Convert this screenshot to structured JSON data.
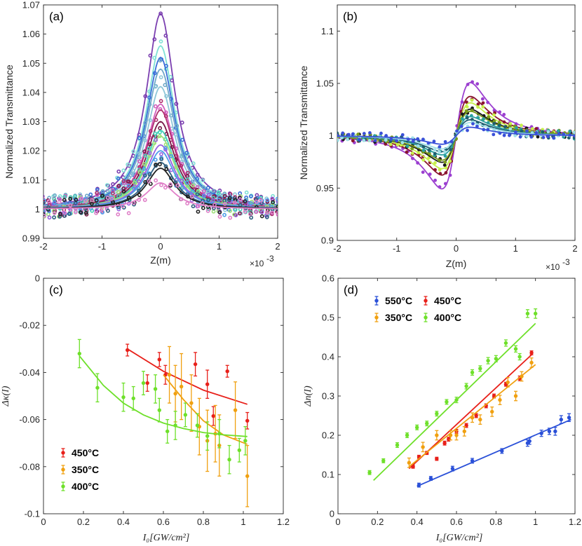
{
  "chart_data": [
    {
      "id": "a",
      "type": "scatter",
      "panel_label": "(a)",
      "xlabel": "Z(m)",
      "ylabel": "Normalized Transmittance",
      "x_exponent": "×10",
      "x_exponent_power": "-3",
      "xlim": [
        -2,
        2
      ],
      "ylim": [
        0.99,
        1.07
      ],
      "xticks": [
        -2,
        -1,
        0,
        1,
        2
      ],
      "yticks": [
        0.99,
        1,
        1.01,
        1.02,
        1.03,
        1.04,
        1.05,
        1.06,
        1.07
      ],
      "ytick_labels": [
        "0.99",
        "1",
        "1.01",
        "1.02",
        "1.03",
        "1.04",
        "1.05",
        "1.06",
        "1.07"
      ],
      "model": "lorentzian peak: T(z) = 1 + peak / (1 + (z/z0)^2), z in units of 10^-3 m",
      "z0": 0.3,
      "series": [
        {
          "peak": 0.067,
          "color": "#7b3fb0"
        },
        {
          "peak": 0.056,
          "color": "#7fe0d6"
        },
        {
          "peak": 0.052,
          "color": "#3a6fd8"
        },
        {
          "peak": 0.048,
          "color": "#6fa8c8"
        },
        {
          "peak": 0.042,
          "color": "#8fc7d9"
        },
        {
          "peak": 0.036,
          "color": "#d25fbd"
        },
        {
          "peak": 0.034,
          "color": "#b0306e"
        },
        {
          "peak": 0.03,
          "color": "#7a1a4a"
        },
        {
          "peak": 0.027,
          "color": "#44d0b8"
        },
        {
          "peak": 0.025,
          "color": "#9fe07a"
        },
        {
          "peak": 0.022,
          "color": "#9a5fe0"
        },
        {
          "peak": 0.02,
          "color": "#4f9ee8"
        },
        {
          "peak": 0.016,
          "color": "#2f5f7f"
        },
        {
          "peak": 0.014,
          "color": "#222222"
        },
        {
          "peak": 0.009,
          "color": "#e080c8"
        }
      ]
    },
    {
      "id": "b",
      "type": "scatter",
      "panel_label": "(b)",
      "xlabel": "Z(m)",
      "ylabel": "Normalized Transmittance",
      "x_exponent": "×10",
      "x_exponent_power": "-3",
      "xlim": [
        -2,
        2
      ],
      "ylim": [
        0.9,
        1.125
      ],
      "xticks": [
        -2,
        -1,
        0,
        1,
        2
      ],
      "yticks": [
        0.9,
        0.95,
        1,
        1.05,
        1.1
      ],
      "ytick_labels": [
        "0.9",
        "0.95",
        "1",
        "1.05",
        "1.1"
      ],
      "model": "dispersive valley-peak: T(z) = 1 + A * 4x / ((x^2+1)(x^2+9)), x = z/z0, z in units of 10^-3 m",
      "z0": 0.28,
      "series": [
        {
          "amplitude": 0.25,
          "color": "#9b3fd0"
        },
        {
          "amplitude": 0.185,
          "color": "#8a1530"
        },
        {
          "amplitude": 0.155,
          "color": "#c8f04a"
        },
        {
          "amplitude": 0.125,
          "color": "#1a1a1a"
        },
        {
          "amplitude": 0.115,
          "color": "#7a9a1a"
        },
        {
          "amplitude": 0.09,
          "color": "#2aa0a0"
        },
        {
          "amplitude": 0.075,
          "color": "#1f5f6f"
        },
        {
          "amplitude": 0.062,
          "color": "#a0e0e8"
        },
        {
          "amplitude": 0.04,
          "color": "#3a4fd8"
        }
      ]
    },
    {
      "id": "c",
      "type": "scatter",
      "panel_label": "(c)",
      "xlabel": "I₀[GW/cm²]",
      "ylabel": "Δκ(I)",
      "xlim": [
        0,
        1.2
      ],
      "ylim": [
        -0.1,
        0
      ],
      "xticks": [
        0,
        0.2,
        0.4,
        0.6,
        0.8,
        1,
        1.2
      ],
      "xtick_labels": [
        "0",
        "0.2",
        "0.4",
        "0.6",
        "0.8",
        "1",
        "1.2"
      ],
      "yticks": [
        -0.1,
        -0.08,
        -0.06,
        -0.04,
        -0.02,
        0
      ],
      "ytick_labels": [
        "-0.1",
        "-0.08",
        "-0.06",
        "-0.04",
        "-0.02",
        "0"
      ],
      "legend_position": "lower-left",
      "series": [
        {
          "name": "450°C",
          "color": "#e8201a",
          "x": [
            0.42,
            0.52,
            0.58,
            0.61,
            0.76,
            0.82,
            0.85,
            0.92,
            1.02
          ],
          "y": [
            -0.0305,
            -0.0445,
            -0.0345,
            -0.041,
            -0.0365,
            -0.045,
            -0.0585,
            -0.0395,
            -0.0605
          ],
          "err": [
            0.0025,
            0.0035,
            0.003,
            0.004,
            0.005,
            0.006,
            0.004,
            0.0025,
            0.0035
          ],
          "fit": {
            "x": [
              0.42,
              0.6,
              0.8,
              1.02
            ],
            "y": [
              -0.03,
              -0.0395,
              -0.0475,
              -0.0535
            ]
          }
        },
        {
          "name": "350°C",
          "color": "#f0a010",
          "x": [
            0.63,
            0.66,
            0.69,
            0.74,
            0.78,
            0.82,
            0.86,
            0.88,
            0.96,
            1.02
          ],
          "y": [
            -0.041,
            -0.049,
            -0.046,
            -0.053,
            -0.063,
            -0.069,
            -0.066,
            -0.071,
            -0.056,
            -0.084
          ],
          "err": [
            0.012,
            0.012,
            0.014,
            0.012,
            0.012,
            0.013,
            0.012,
            0.013,
            0.012,
            0.013
          ],
          "fit": {
            "x": [
              0.6,
              0.7,
              0.8,
              0.9,
              1.02
            ],
            "y": [
              -0.041,
              -0.0515,
              -0.0605,
              -0.0665,
              -0.0705
            ]
          }
        },
        {
          "name": "400°C",
          "color": "#6ee02a",
          "x": [
            0.18,
            0.27,
            0.4,
            0.45,
            0.5,
            0.56,
            0.58,
            0.62,
            0.66,
            0.71,
            0.77,
            0.82,
            0.88,
            0.93,
            0.98,
            1.01
          ],
          "y": [
            -0.032,
            -0.0465,
            -0.0505,
            -0.051,
            -0.0445,
            -0.047,
            -0.056,
            -0.065,
            -0.0625,
            -0.058,
            -0.0625,
            -0.067,
            -0.066,
            -0.077,
            -0.073,
            -0.069
          ],
          "err": [
            0.006,
            0.006,
            0.006,
            0.005,
            0.005,
            0.006,
            0.005,
            0.005,
            0.006,
            0.005,
            0.005,
            0.006,
            0.006,
            0.006,
            0.005,
            0.006
          ],
          "fit": {
            "x": [
              0.18,
              0.3,
              0.4,
              0.5,
              0.6,
              0.7,
              0.8,
              0.9,
              1.02
            ],
            "y": [
              -0.033,
              -0.0455,
              -0.053,
              -0.058,
              -0.0615,
              -0.0638,
              -0.0655,
              -0.0665,
              -0.0672
            ]
          }
        }
      ]
    },
    {
      "id": "d",
      "type": "scatter",
      "panel_label": "(d)",
      "xlabel": "I₀[GW/cm²]",
      "ylabel": "Δn(I)",
      "xlim": [
        0,
        1.2
      ],
      "ylim": [
        0,
        0.6
      ],
      "xticks": [
        0,
        0.2,
        0.4,
        0.6,
        0.8,
        1,
        1.2
      ],
      "xtick_labels": [
        "0",
        "0.2",
        "0.4",
        "0.6",
        "0.8",
        "1",
        "1.2"
      ],
      "yticks": [
        0,
        0.1,
        0.2,
        0.3,
        0.4,
        0.5,
        0.6
      ],
      "ytick_labels": [
        "0",
        "0.1",
        "0.2",
        "0.3",
        "0.4",
        "0.5",
        "0.6"
      ],
      "legend_position": "top-left",
      "series": [
        {
          "name": "550°C",
          "color": "#2a50d8",
          "x": [
            0.41,
            0.47,
            0.58,
            0.68,
            0.83,
            0.96,
            0.97,
            1.03,
            1.07,
            1.1,
            1.13,
            1.17
          ],
          "y": [
            0.073,
            0.09,
            0.115,
            0.135,
            0.16,
            0.18,
            0.185,
            0.205,
            0.21,
            0.21,
            0.24,
            0.245
          ],
          "err": [
            0.005,
            0.005,
            0.006,
            0.006,
            0.006,
            0.008,
            0.008,
            0.008,
            0.008,
            0.01,
            0.01,
            0.01
          ],
          "fit": {
            "x": [
              0.4,
              1.18
            ],
            "y": [
              0.07,
              0.24
            ]
          }
        },
        {
          "name": "450°C",
          "color": "#e8201a",
          "x": [
            0.38,
            0.41,
            0.45,
            0.5,
            0.54,
            0.56,
            0.6,
            0.65,
            0.7,
            0.75,
            0.79,
            0.85,
            0.92,
            0.98
          ],
          "y": [
            0.12,
            0.145,
            0.155,
            0.14,
            0.18,
            0.19,
            0.21,
            0.225,
            0.25,
            0.275,
            0.3,
            0.33,
            0.345,
            0.41
          ],
          "err": [
            0.004,
            0.004,
            0.004,
            0.004,
            0.005,
            0.005,
            0.005,
            0.005,
            0.005,
            0.005,
            0.005,
            0.005,
            0.006,
            0.005
          ],
          "fit": {
            "x": [
              0.36,
              0.98
            ],
            "y": [
              0.115,
              0.405
            ]
          }
        },
        {
          "name": "350°C",
          "color": "#f0a010",
          "x": [
            0.36,
            0.43,
            0.5,
            0.57,
            0.6,
            0.64,
            0.68,
            0.72,
            0.78,
            0.82,
            0.86,
            0.9,
            0.93,
            0.98
          ],
          "y": [
            0.13,
            0.17,
            0.2,
            0.2,
            0.2,
            0.21,
            0.245,
            0.24,
            0.26,
            0.29,
            0.335,
            0.3,
            0.35,
            0.385
          ],
          "err": [
            0.012,
            0.012,
            0.012,
            0.012,
            0.012,
            0.012,
            0.012,
            0.012,
            0.012,
            0.012,
            0.012,
            0.012,
            0.012,
            0.012
          ],
          "fit": {
            "x": [
              0.36,
              1.0
            ],
            "y": [
              0.12,
              0.38
            ]
          }
        },
        {
          "name": "400°C",
          "color": "#6ee02a",
          "x": [
            0.16,
            0.23,
            0.3,
            0.35,
            0.4,
            0.45,
            0.5,
            0.55,
            0.6,
            0.65,
            0.68,
            0.72,
            0.76,
            0.8,
            0.85,
            0.9,
            0.92,
            0.96,
            1.0
          ],
          "y": [
            0.105,
            0.135,
            0.175,
            0.2,
            0.22,
            0.23,
            0.255,
            0.285,
            0.29,
            0.325,
            0.36,
            0.37,
            0.39,
            0.395,
            0.435,
            0.42,
            0.4,
            0.51,
            0.51
          ],
          "err": [
            0.005,
            0.005,
            0.006,
            0.006,
            0.006,
            0.006,
            0.006,
            0.006,
            0.007,
            0.007,
            0.007,
            0.007,
            0.008,
            0.008,
            0.008,
            0.008,
            0.008,
            0.01,
            0.012
          ],
          "fit": {
            "x": [
              0.18,
              1.0
            ],
            "y": [
              0.085,
              0.485
            ]
          }
        }
      ]
    }
  ]
}
